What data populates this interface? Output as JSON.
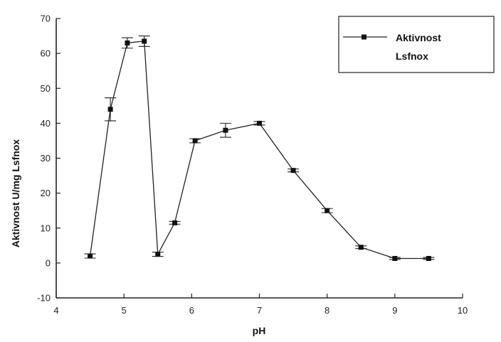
{
  "chart_data": {
    "type": "line",
    "xlabel": "pH",
    "ylabel": "Aktivnost  U/mg Lsfnox",
    "xlim": [
      4,
      10
    ],
    "ylim": [
      -10,
      70
    ],
    "xticks": [
      4,
      5,
      6,
      7,
      8,
      9,
      10
    ],
    "yticks": [
      -10,
      0,
      10,
      20,
      30,
      40,
      50,
      60,
      70
    ],
    "xtick_labels": [
      "4",
      "5",
      "6",
      "7",
      "8",
      "9",
      "10"
    ],
    "ytick_labels": [
      "-10",
      "0",
      "10",
      "20",
      "30",
      "40",
      "50",
      "60",
      "70"
    ],
    "grid": false,
    "legend_position": "top-right",
    "legend_lines": [
      "Aktivnost",
      "Lsfnox"
    ],
    "series": [
      {
        "name": "Aktivnost Lsfnox",
        "x": [
          4.5,
          4.8,
          5.05,
          5.3,
          5.5,
          5.75,
          6.05,
          6.5,
          7.0,
          7.5,
          8.0,
          8.5,
          9.0,
          9.5
        ],
        "y": [
          2,
          44,
          63,
          63.5,
          2.5,
          11.5,
          35,
          38,
          40,
          26.5,
          15,
          4.5,
          1.3,
          1.3
        ],
        "err": [
          0.6,
          3.3,
          1.5,
          1.5,
          0.6,
          0.4,
          0.6,
          2.0,
          0.5,
          0.4,
          0.6,
          0.4,
          0.3,
          0.3
        ]
      }
    ]
  }
}
